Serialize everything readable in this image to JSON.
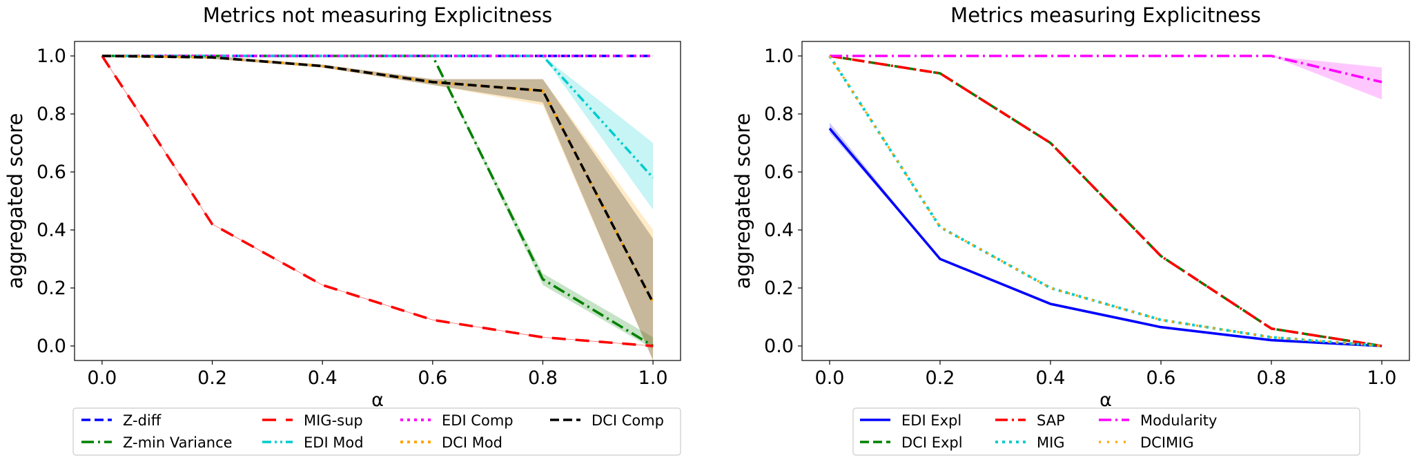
{
  "chart_data": [
    {
      "type": "line",
      "title": "Metrics not measuring Explicitness",
      "xlabel": "α",
      "ylabel": "aggregated score",
      "x": [
        0.0,
        0.2,
        0.4,
        0.6,
        0.8,
        1.0
      ],
      "xlim": [
        -0.05,
        1.05
      ],
      "ylim": [
        -0.05,
        1.05
      ],
      "xticks": [
        "0.0",
        "0.2",
        "0.4",
        "0.6",
        "0.8",
        "1.0"
      ],
      "yticks": [
        "0.0",
        "0.2",
        "0.4",
        "0.6",
        "0.8",
        "1.0"
      ],
      "grid": false,
      "legend_position": "below",
      "legend_columns": 4,
      "series": [
        {
          "name": "Z-diff",
          "values": [
            1.0,
            1.0,
            1.0,
            1.0,
            1.0,
            1.0
          ],
          "color": "#0000ff",
          "style": "dashed"
        },
        {
          "name": "Z-min Variance",
          "values": [
            1.0,
            1.0,
            1.0,
            1.0,
            0.23,
            0.0
          ],
          "band_lower": [
            1.0,
            1.0,
            1.0,
            1.0,
            0.21,
            -0.01
          ],
          "band_upper": [
            1.0,
            1.0,
            1.0,
            1.0,
            0.25,
            0.03
          ],
          "color": "#008000",
          "style": "dashdot"
        },
        {
          "name": "MIG-sup",
          "values": [
            1.0,
            0.42,
            0.21,
            0.09,
            0.03,
            0.0
          ],
          "color": "#ff0000",
          "style": "longdash"
        },
        {
          "name": "EDI Mod",
          "values": [
            1.0,
            1.0,
            1.0,
            1.0,
            1.0,
            0.58
          ],
          "band_lower": [
            1.0,
            1.0,
            1.0,
            1.0,
            1.0,
            0.47
          ],
          "band_upper": [
            1.0,
            1.0,
            1.0,
            1.0,
            1.0,
            0.7
          ],
          "color": "#00cccc",
          "style": "dashdotdot"
        },
        {
          "name": "EDI Comp",
          "values": [
            1.0,
            1.0,
            1.0,
            1.0,
            1.0,
            1.0
          ],
          "color": "#ff00ff",
          "style": "dotted"
        },
        {
          "name": "DCI Mod",
          "values": [
            1.0,
            0.995,
            0.965,
            0.91,
            0.88,
            0.15
          ],
          "band_lower": [
            1.0,
            0.99,
            0.96,
            0.9,
            0.83,
            -0.05
          ],
          "band_upper": [
            1.0,
            1.0,
            0.97,
            0.92,
            0.92,
            0.4
          ],
          "color": "#ffa500",
          "style": "dotted"
        },
        {
          "name": "DCI Comp",
          "values": [
            1.0,
            0.995,
            0.965,
            0.91,
            0.88,
            0.15
          ],
          "band_lower": [
            1.0,
            0.99,
            0.96,
            0.9,
            0.84,
            -0.05
          ],
          "band_upper": [
            1.0,
            1.0,
            0.97,
            0.92,
            0.92,
            0.37
          ],
          "color": "#000000",
          "style": "dashed"
        }
      ]
    },
    {
      "type": "line",
      "title": "Metrics measuring Explicitness",
      "xlabel": "α",
      "ylabel": "aggregated score",
      "x": [
        0.0,
        0.2,
        0.4,
        0.6,
        0.8,
        1.0
      ],
      "xlim": [
        -0.05,
        1.05
      ],
      "ylim": [
        -0.05,
        1.05
      ],
      "xticks": [
        "0.0",
        "0.2",
        "0.4",
        "0.6",
        "0.8",
        "1.0"
      ],
      "yticks": [
        "0.0",
        "0.2",
        "0.4",
        "0.6",
        "0.8",
        "1.0"
      ],
      "grid": false,
      "legend_position": "below",
      "legend_columns": 4,
      "series": [
        {
          "name": "EDI Expl",
          "values": [
            0.75,
            0.3,
            0.145,
            0.065,
            0.02,
            0.0
          ],
          "band_lower": [
            0.735,
            0.3,
            0.145,
            0.065,
            0.02,
            0.0
          ],
          "band_upper": [
            0.77,
            0.3,
            0.145,
            0.065,
            0.02,
            0.0
          ],
          "color": "#0000ff",
          "style": "solid"
        },
        {
          "name": "DCI Expl",
          "values": [
            1.0,
            0.94,
            0.7,
            0.31,
            0.06,
            0.0
          ],
          "color": "#008000",
          "style": "dashed"
        },
        {
          "name": "SAP",
          "values": [
            1.0,
            0.94,
            0.7,
            0.31,
            0.06,
            0.0
          ],
          "color": "#ff0000",
          "style": "dashdot"
        },
        {
          "name": "MIG",
          "values": [
            1.0,
            0.41,
            0.2,
            0.09,
            0.03,
            0.0
          ],
          "color": "#00cccc",
          "style": "dotted"
        },
        {
          "name": "Modularity",
          "values": [
            1.0,
            1.0,
            1.0,
            1.0,
            1.0,
            0.91
          ],
          "band_lower": [
            1.0,
            1.0,
            1.0,
            1.0,
            1.0,
            0.85
          ],
          "band_upper": [
            1.0,
            1.0,
            1.0,
            1.0,
            1.0,
            0.96
          ],
          "color": "#ff00ff",
          "style": "dashdot"
        },
        {
          "name": "DCIMIG",
          "values": [
            1.0,
            0.41,
            0.2,
            0.09,
            0.03,
            0.0
          ],
          "color": "#ffa500",
          "style": "sparsedot"
        }
      ]
    }
  ]
}
